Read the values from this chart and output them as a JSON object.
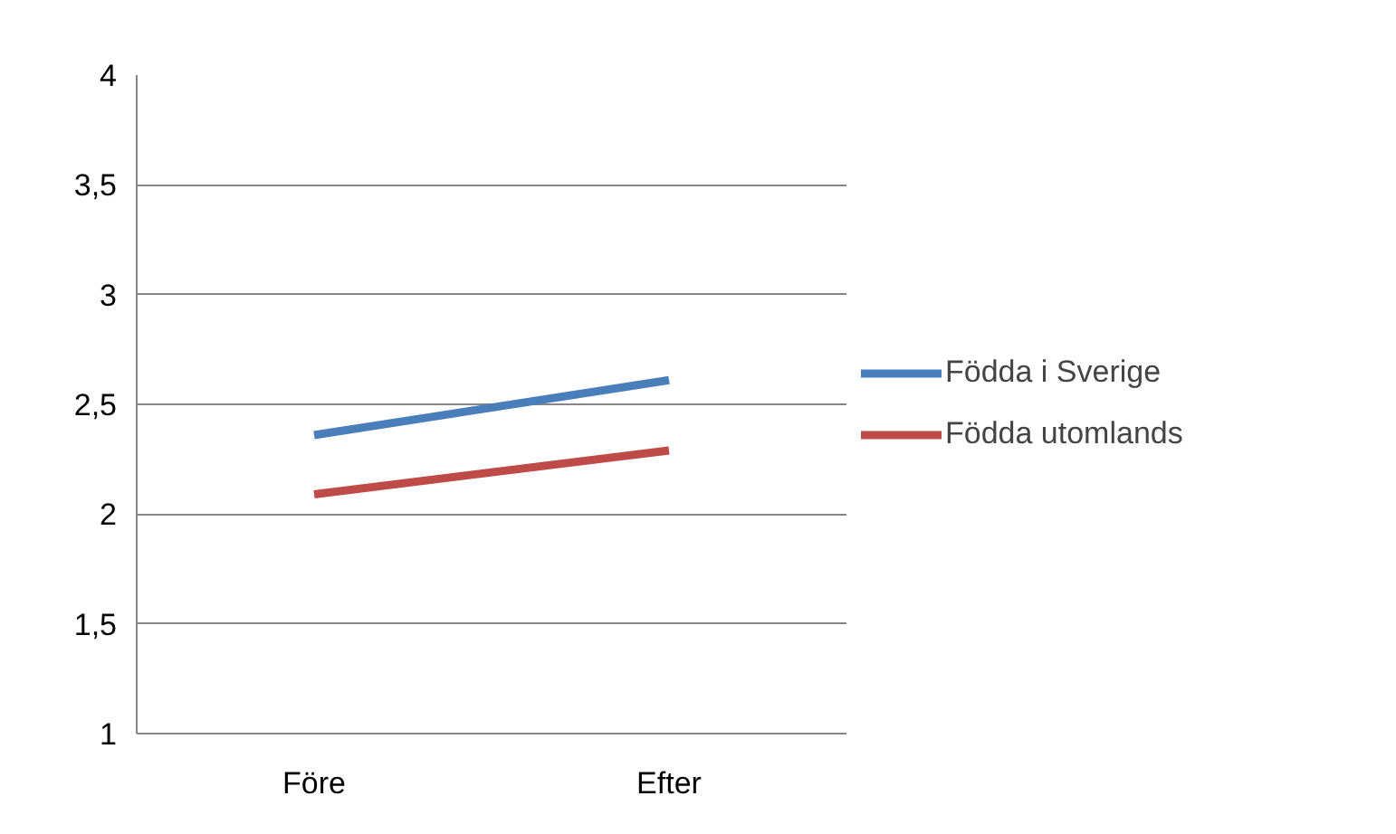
{
  "chart_data": {
    "type": "line",
    "categories": [
      "Före",
      "Efter"
    ],
    "series": [
      {
        "name": "Födda i Sverige",
        "color": "#4a7ebb",
        "values": [
          2.36,
          2.61
        ]
      },
      {
        "name": "Födda utomlands",
        "color": "#be4b48",
        "values": [
          2.09,
          2.29
        ]
      }
    ],
    "ylim": [
      1,
      4
    ],
    "yticks": [
      1,
      {
        "value": 1.5,
        "label": "1,5"
      },
      2,
      {
        "value": 2.5,
        "label": "2,5"
      },
      3,
      {
        "value": 3.5,
        "label": "3,5"
      },
      4
    ],
    "grid": "y",
    "legend": "right",
    "marker": "none",
    "line_style": "solid"
  }
}
